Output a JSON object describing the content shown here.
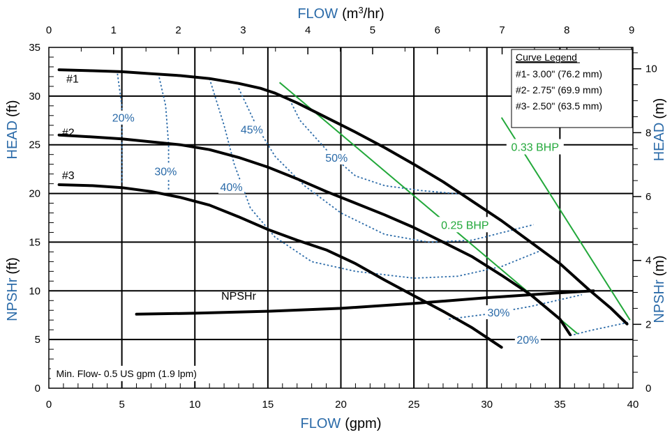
{
  "chart_data": {
    "type": "line",
    "top_axis": {
      "label": "FLOW",
      "unit_prefix": "(m",
      "unit_sup": "3",
      "unit_suffix": "/hr)",
      "ticks": [
        "0",
        "1",
        "2",
        "3",
        "4",
        "5",
        "6",
        "7",
        "8",
        "9"
      ],
      "range": [
        0,
        9.02
      ]
    },
    "bottom_axis": {
      "label": "FLOW",
      "unit": "(gpm)",
      "ticks": [
        "0",
        "5",
        "10",
        "15",
        "20",
        "25",
        "30",
        "35",
        "40"
      ],
      "range": [
        0,
        40
      ]
    },
    "left_axis": {
      "label_head": "HEAD",
      "label_head_unit": "(ft)",
      "label_npsh": "NPSHr",
      "label_npsh_unit": "(ft)",
      "ticks": [
        "0",
        "5",
        "10",
        "15",
        "20",
        "25",
        "30",
        "35"
      ],
      "range": [
        0,
        35
      ]
    },
    "right_axis": {
      "label_head": "HEAD",
      "label_head_unit": "(m)",
      "label_npsh": "NPSHr",
      "label_npsh_unit": "(m)",
      "ticks": [
        "0",
        "2",
        "4",
        "6",
        "8",
        "10"
      ],
      "range": [
        0,
        10.67
      ]
    },
    "legend": {
      "title": "Curve Legend",
      "entries": [
        "#1- 3.00\" (76.2 mm)",
        "#2- 2.75\" (69.9 mm)",
        "#3- 2.50\" (63.5 mm)"
      ],
      "placement": "top-right"
    },
    "head_curves": [
      {
        "name": "#1",
        "points": [
          [
            0.7,
            32.7
          ],
          [
            3,
            32.6
          ],
          [
            5,
            32.5
          ],
          [
            7,
            32.3
          ],
          [
            9,
            32.1
          ],
          [
            11,
            31.8
          ],
          [
            13,
            31.3
          ],
          [
            14.5,
            30.8
          ],
          [
            15.5,
            30.3
          ],
          [
            17,
            29.3
          ],
          [
            19,
            27.8
          ],
          [
            21,
            26.3
          ],
          [
            23,
            24.7
          ],
          [
            25,
            23.0
          ],
          [
            27,
            21.2
          ],
          [
            29,
            19.2
          ],
          [
            31,
            17.2
          ],
          [
            33,
            15.0
          ],
          [
            35,
            12.8
          ],
          [
            37,
            10.1
          ],
          [
            38.5,
            8.2
          ],
          [
            39.6,
            6.6
          ]
        ]
      },
      {
        "name": "#2",
        "points": [
          [
            0.7,
            26.0
          ],
          [
            3,
            25.8
          ],
          [
            5,
            25.6
          ],
          [
            7,
            25.3
          ],
          [
            9,
            25.0
          ],
          [
            11,
            24.5
          ],
          [
            13,
            23.7
          ],
          [
            15,
            22.7
          ],
          [
            17,
            21.5
          ],
          [
            19,
            20.2
          ],
          [
            21,
            19.0
          ],
          [
            23,
            17.8
          ],
          [
            25,
            16.5
          ],
          [
            27,
            15.0
          ],
          [
            29,
            13.5
          ],
          [
            31,
            11.6
          ],
          [
            33,
            9.6
          ],
          [
            35,
            7.1
          ],
          [
            35.7,
            5.5
          ]
        ]
      },
      {
        "name": "#3",
        "points": [
          [
            0.7,
            20.9
          ],
          [
            3,
            20.8
          ],
          [
            5,
            20.6
          ],
          [
            7,
            20.2
          ],
          [
            9,
            19.6
          ],
          [
            11,
            18.8
          ],
          [
            13,
            17.6
          ],
          [
            15,
            16.3
          ],
          [
            17,
            15.2
          ],
          [
            19,
            14.2
          ],
          [
            21,
            12.8
          ],
          [
            23,
            11.1
          ],
          [
            25,
            9.5
          ],
          [
            27,
            7.9
          ],
          [
            29,
            6.2
          ],
          [
            31,
            4.2
          ]
        ]
      }
    ],
    "npshr_curve": {
      "name": "NPSHr",
      "points": [
        [
          6,
          7.6
        ],
        [
          10,
          7.7
        ],
        [
          15,
          7.9
        ],
        [
          20,
          8.2
        ],
        [
          25,
          8.7
        ],
        [
          30,
          9.3
        ],
        [
          35,
          9.8
        ],
        [
          37.3,
          10.0
        ]
      ]
    },
    "bhp_lines": [
      {
        "name": "0.25 BHP",
        "points": [
          [
            15.8,
            31.4
          ],
          [
            36.2,
            5.6
          ]
        ],
        "label_at": [
          28.5,
          16.8
        ]
      },
      {
        "name": "0.33 BHP",
        "points": [
          [
            31,
            27.8
          ],
          [
            39.8,
            7.0
          ]
        ],
        "label_at": [
          33.3,
          24.8
        ]
      }
    ],
    "efficiency_curves": [
      {
        "name": "20%",
        "points": [
          [
            4.7,
            32.3
          ],
          [
            5.0,
            29.0
          ],
          [
            5.0,
            25.0
          ],
          [
            5.0,
            21.0
          ]
        ],
        "label_at": [
          5.1,
          27.8
        ]
      },
      {
        "name": "30%",
        "points": [
          [
            7.5,
            32.3
          ],
          [
            8.0,
            29.0
          ],
          [
            8.2,
            25.0
          ],
          [
            8.2,
            20.3
          ]
        ],
        "label_at": [
          8.0,
          22.3
        ]
      },
      {
        "name": "40%",
        "points": [
          [
            11.0,
            31.8
          ],
          [
            12.0,
            27.0
          ],
          [
            12.7,
            23.0
          ],
          [
            13.8,
            18.5
          ],
          [
            15.5,
            15.5
          ],
          [
            18,
            13.0
          ],
          [
            21,
            12.0
          ],
          [
            25,
            11.3
          ],
          [
            28,
            11.5
          ],
          [
            31,
            12.5
          ],
          [
            33.8,
            14.2
          ]
        ],
        "label_at": [
          12.5,
          20.7
        ]
      },
      {
        "name": "45%",
        "points": [
          [
            13.0,
            30.8
          ],
          [
            14.2,
            27.0
          ],
          [
            15.5,
            23.8
          ],
          [
            17.5,
            20.8
          ],
          [
            20,
            18.0
          ],
          [
            23,
            15.8
          ],
          [
            26,
            15.0
          ],
          [
            29,
            15.2
          ],
          [
            33.2,
            16.8
          ]
        ],
        "label_at": [
          13.9,
          26.6
        ]
      },
      {
        "name": "50%",
        "points": [
          [
            16.5,
            29.6
          ],
          [
            17.2,
            27.5
          ],
          [
            19.3,
            24.0
          ],
          [
            21,
            21.8
          ],
          [
            23,
            20.8
          ],
          [
            25.5,
            20.3
          ],
          [
            28.5,
            19.9
          ]
        ],
        "label_at": [
          19.7,
          23.7
        ]
      },
      {
        "name": "30%",
        "points": [
          [
            27.4,
            7.1
          ],
          [
            30,
            7.6
          ],
          [
            33,
            8.4
          ],
          [
            36.5,
            9.6
          ]
        ],
        "label_at": [
          30.8,
          7.8
        ]
      },
      {
        "name": "20%",
        "points": [
          [
            35.7,
            5.4
          ],
          [
            37,
            5.9
          ],
          [
            39.8,
            6.8
          ]
        ],
        "label_at": [
          32.8,
          5.0
        ]
      }
    ],
    "annotations": [
      {
        "text": "NPSHr",
        "at": [
          13.0,
          9.1
        ]
      },
      {
        "text": "Min. Flow- 0.5 US gpm (1.9 lpm)",
        "at": [
          0.5,
          1.3
        ]
      }
    ],
    "grid": true
  }
}
